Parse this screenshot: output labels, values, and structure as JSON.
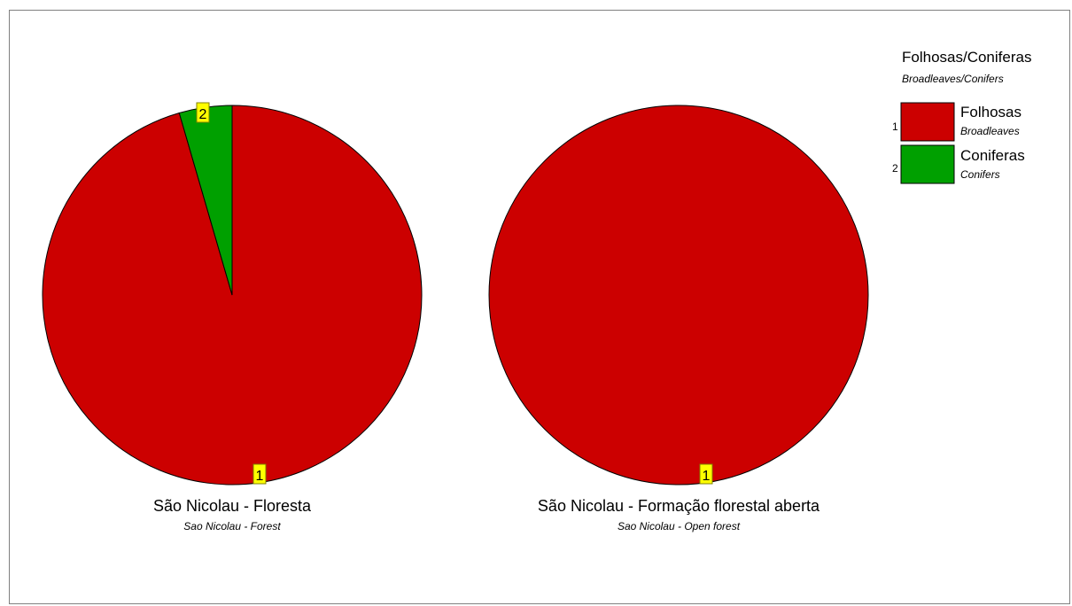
{
  "legend": {
    "title": "Folhosas/Coniferas",
    "subtitle": "Broadleaves/Conifers",
    "items": [
      {
        "num": "1",
        "label": "Folhosas",
        "sublabel": "Broadleaves",
        "color": "#cc0000"
      },
      {
        "num": "2",
        "label": "Coniferas",
        "sublabel": "Conifers",
        "color": "#00a000"
      }
    ]
  },
  "chart_data": [
    {
      "type": "pie",
      "title": "São Nicolau  - Floresta",
      "subtitle": "Sao Nicolau - Forest",
      "slices": [
        {
          "id": "1",
          "value": 95.5,
          "color": "#cc0000"
        },
        {
          "id": "2",
          "value": 4.5,
          "color": "#00a000"
        }
      ]
    },
    {
      "type": "pie",
      "title": "São Nicolau - Formação florestal aberta",
      "subtitle": "Sao Nicolau - Open forest",
      "slices": [
        {
          "id": "1",
          "value": 100,
          "color": "#cc0000"
        }
      ]
    }
  ]
}
